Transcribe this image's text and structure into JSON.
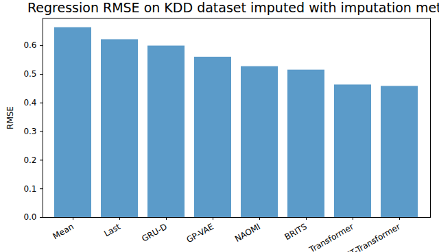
{
  "chart_data": {
    "type": "bar",
    "title": "Regression RMSE on KDD dataset imputed with imputation methods",
    "categories": [
      "Mean",
      "Last",
      "GRU-D",
      "GP-VAE",
      "NAOMI",
      "BRITS",
      "Transformer",
      "ST-Transformer"
    ],
    "values": [
      0.663,
      0.621,
      0.599,
      0.56,
      0.527,
      0.515,
      0.463,
      0.458
    ],
    "color": "#5b9bc9",
    "y_label": "RMSE",
    "ylim": [
      0,
      0.696
    ],
    "yticks": [
      {
        "value": 0,
        "label": "0.0"
      },
      {
        "value": 0.1,
        "label": "0.1"
      },
      {
        "value": 0.2,
        "label": "0.2"
      },
      {
        "value": 0.3,
        "label": "0.3"
      },
      {
        "value": 0.4,
        "label": "0.4"
      },
      {
        "value": 0.5,
        "label": "0.5"
      },
      {
        "value": 0.6,
        "label": "0.6"
      }
    ],
    "grid": false
  }
}
